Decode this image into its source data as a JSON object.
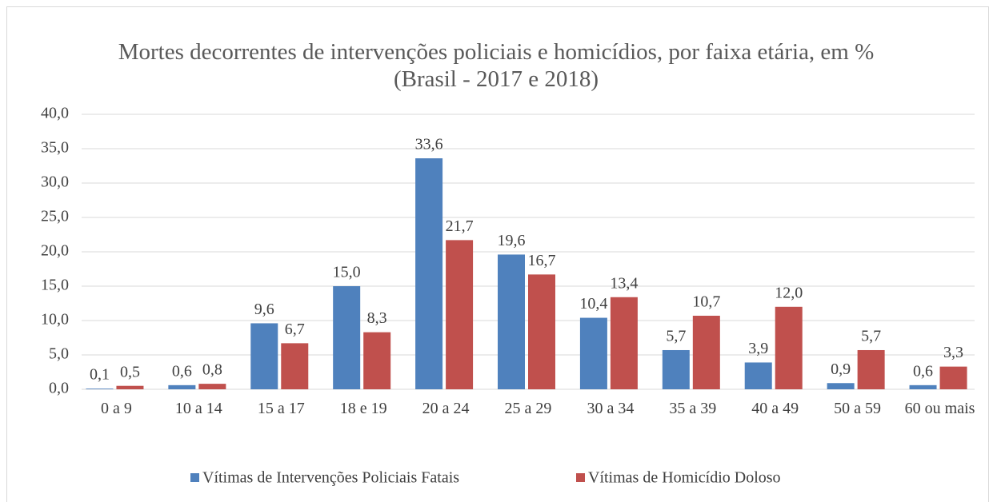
{
  "chart_data": {
    "type": "bar",
    "title": "Mortes decorrentes de intervenções policiais e homicídios, por faixa etária, em % (Brasil - 2017 e 2018)",
    "categories": [
      "0 a 9",
      "10 a 14",
      "15 a 17",
      "18 e 19",
      "20 a 24",
      "25 a 29",
      "30 a 34",
      "35 a 39",
      "40 a 49",
      "50 a 59",
      "60 ou mais"
    ],
    "series": [
      {
        "name": "Vítimas de Intervenções Policiais Fatais",
        "color": "#4f81bd",
        "values": [
          0.1,
          0.6,
          9.6,
          15.0,
          33.6,
          19.6,
          10.4,
          5.7,
          3.9,
          0.9,
          0.6
        ],
        "value_labels": [
          "0,1",
          "0,6",
          "9,6",
          "15,0",
          "33,6",
          "19,6",
          "10,4",
          "5,7",
          "3,9",
          "0,9",
          "0,6"
        ]
      },
      {
        "name": "Vítimas de Homicídio Doloso",
        "color": "#c0504d",
        "values": [
          0.5,
          0.8,
          6.7,
          8.3,
          21.7,
          16.7,
          13.4,
          10.7,
          12.0,
          5.7,
          3.3
        ],
        "value_labels": [
          "0,5",
          "0,8",
          "6,7",
          "8,3",
          "21,7",
          "16,7",
          "13,4",
          "10,7",
          "12,0",
          "5,7",
          "3,3"
        ]
      }
    ],
    "ylim": [
      0,
      40
    ],
    "yticks": [
      {
        "value": 0,
        "label": "0,0"
      },
      {
        "value": 5,
        "label": "5,0"
      },
      {
        "value": 10,
        "label": "10,0"
      },
      {
        "value": 15,
        "label": "15,0"
      },
      {
        "value": 20,
        "label": "20,0"
      },
      {
        "value": 25,
        "label": "25,0"
      },
      {
        "value": 30,
        "label": "30,0"
      },
      {
        "value": 35,
        "label": "35,0"
      },
      {
        "value": 40,
        "label": "40,0"
      }
    ],
    "grid": true,
    "legend": "bottom"
  }
}
